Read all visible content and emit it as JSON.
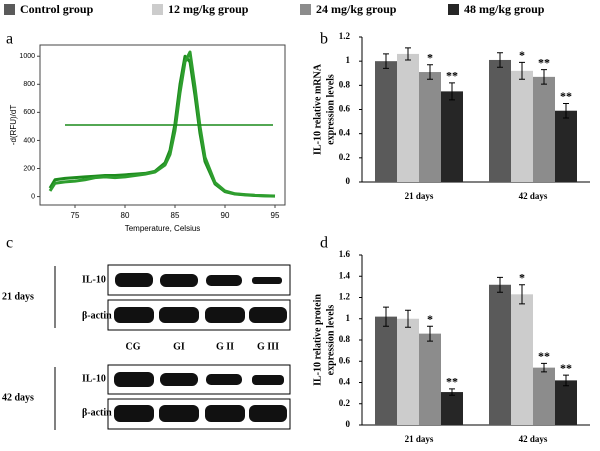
{
  "chart_data": [
    {
      "type": "line",
      "panel": "a",
      "xlabel": "Temperature, Celsius",
      "ylabel": "-d(RFU)/dT",
      "xlim": [
        71.5,
        96
      ],
      "xticks": [
        75,
        80,
        85,
        90,
        95
      ],
      "ylim": [
        -60,
        1080
      ],
      "yticks": [
        0,
        200,
        400,
        600,
        800,
        1000
      ],
      "threshold": 510,
      "threshold_color": "#1a8a1a",
      "series": [
        {
          "color": "#1e8c1e",
          "x": [
            72.5,
            73,
            74,
            75,
            76,
            77,
            78,
            79,
            80,
            81,
            82,
            83,
            84,
            84.5,
            85,
            85.5,
            86,
            86.5,
            87,
            87.5,
            88,
            89,
            90,
            91,
            92,
            93,
            94,
            95
          ],
          "values": [
            60,
            120,
            130,
            135,
            140,
            145,
            150,
            150,
            155,
            160,
            165,
            180,
            240,
            330,
            520,
            800,
            1000,
            960,
            720,
            450,
            250,
            90,
            35,
            18,
            12,
            8,
            5,
            3
          ]
        },
        {
          "color": "#2e9e2e",
          "x": [
            72.5,
            73,
            74,
            75,
            76,
            77,
            78,
            79,
            80,
            81,
            82,
            83,
            84,
            84.5,
            85,
            85.5,
            86,
            86.5,
            87,
            87.5,
            88,
            89,
            90,
            91,
            92,
            93,
            94,
            95
          ],
          "values": [
            40,
            95,
            105,
            110,
            120,
            135,
            140,
            135,
            140,
            150,
            160,
            175,
            225,
            300,
            470,
            740,
            960,
            1030,
            780,
            500,
            280,
            100,
            40,
            20,
            14,
            9,
            6,
            4
          ]
        }
      ]
    },
    {
      "type": "bar",
      "panel": "b",
      "ylabel": [
        "IL-10 relative mRNA",
        "expression levels"
      ],
      "categories": [
        "21 days",
        "42 days"
      ],
      "ylim": [
        0,
        1.2
      ],
      "yticks": [
        0,
        0.2,
        0.4,
        0.6,
        0.8,
        1,
        1.2
      ],
      "series": [
        {
          "name": "Control group",
          "color": "#5a5a5a",
          "values": [
            1.0,
            1.01
          ],
          "error": [
            0.06,
            0.06
          ],
          "significance": [
            null,
            null
          ]
        },
        {
          "name": "12 mg/kg group",
          "color": "#cccccc",
          "values": [
            1.06,
            0.92
          ],
          "error": [
            0.05,
            0.07
          ],
          "significance": [
            null,
            "*"
          ]
        },
        {
          "name": "24 mg/kg group",
          "color": "#8c8c8c",
          "values": [
            0.91,
            0.87
          ],
          "error": [
            0.06,
            0.06
          ],
          "significance": [
            "*",
            "**"
          ]
        },
        {
          "name": "48 mg/kg group",
          "color": "#262626",
          "values": [
            0.75,
            0.59
          ],
          "error": [
            0.07,
            0.06
          ],
          "significance": [
            "**",
            "**"
          ]
        }
      ]
    },
    {
      "type": "bar",
      "panel": "d",
      "ylabel": [
        "IL-10 relative protein",
        "expression levels"
      ],
      "categories": [
        "21 days",
        "42 days"
      ],
      "ylim": [
        0,
        1.6
      ],
      "yticks": [
        0,
        0.2,
        0.4,
        0.6,
        0.8,
        1,
        1.2,
        1.4,
        1.6
      ],
      "series": [
        {
          "color": "#5a5a5a",
          "values": [
            1.02,
            1.32
          ],
          "error": [
            0.09,
            0.07
          ],
          "significance": [
            null,
            null
          ]
        },
        {
          "color": "#cccccc",
          "values": [
            1.0,
            1.23
          ],
          "error": [
            0.08,
            0.09
          ],
          "significance": [
            null,
            "*"
          ]
        },
        {
          "color": "#8c8c8c",
          "values": [
            0.86,
            0.54
          ],
          "error": [
            0.07,
            0.04
          ],
          "significance": [
            "*",
            "**"
          ]
        },
        {
          "color": "#262626",
          "values": [
            0.31,
            0.42
          ],
          "error": [
            0.03,
            0.05
          ],
          "significance": [
            "**",
            "**"
          ]
        }
      ]
    }
  ],
  "panel_c": {
    "label": "c",
    "lanes": [
      "CG",
      "GI",
      "G II",
      "G III"
    ],
    "groups": [
      {
        "label": "21 days",
        "rows": [
          "IL-10",
          "β-actin"
        ]
      },
      {
        "label": "42 days",
        "rows": [
          "IL-10",
          "β-actin"
        ]
      }
    ]
  }
}
